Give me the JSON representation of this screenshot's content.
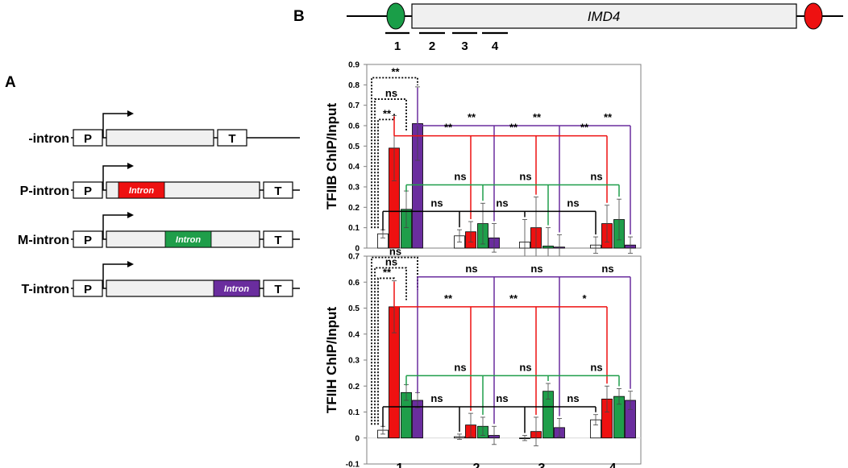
{
  "colors": {
    "none": "#ffffff",
    "p": "#ee1111",
    "m": "#1f9e4a",
    "t": "#6a2d9e",
    "box": "#f0f0f0",
    "axis": "#808080",
    "grid": "#d9d9d9"
  },
  "panelA": {
    "label": "A",
    "constructs": [
      {
        "name": "-intron",
        "promoter": "P",
        "terminator": "T",
        "intron": null
      },
      {
        "name": "P-intron",
        "promoter": "P",
        "terminator": "T",
        "intron": {
          "text": "Intron",
          "color": "p",
          "pos": "5'"
        }
      },
      {
        "name": "M-intron",
        "promoter": "P",
        "terminator": "T",
        "intron": {
          "text": "Intron",
          "color": "m",
          "pos": "middle"
        }
      },
      {
        "name": "T-intron",
        "promoter": "P",
        "terminator": "T",
        "intron": {
          "text": "Intron",
          "color": "t",
          "pos": "3'"
        }
      }
    ]
  },
  "panelB": {
    "label": "B",
    "gene": "IMD4",
    "regions": [
      "1",
      "2",
      "3",
      "4"
    ]
  },
  "chart_data": [
    {
      "type": "bar",
      "title": "",
      "ylabel": "TFIIB ChIP/Input",
      "xlabel": "",
      "categories": [
        "1",
        "2",
        "3",
        "4"
      ],
      "ylim": [
        0,
        0.9
      ],
      "ytick_step": 0.1,
      "ytick_labels": [
        "0",
        "0.1",
        "0.2",
        "0.3",
        "0.4",
        "0.5",
        "0.6",
        "0.7",
        "0.8",
        "0.9"
      ],
      "series": [
        {
          "name": "-intron",
          "color": "none",
          "values": [
            0.07,
            0.06,
            0.03,
            0.015
          ],
          "errors": [
            0.02,
            0.03,
            0.11,
            0.04
          ]
        },
        {
          "name": "P-intron",
          "color": "p",
          "values": [
            0.49,
            0.08,
            0.1,
            0.12
          ],
          "errors": [
            0.16,
            0.05,
            0.15,
            0.09
          ]
        },
        {
          "name": "M-intron",
          "color": "m",
          "values": [
            0.19,
            0.12,
            0.01,
            0.14
          ],
          "errors": [
            0.09,
            0.1,
            0.09,
            0.1
          ]
        },
        {
          "name": "T-intron",
          "color": "t",
          "values": [
            0.61,
            0.05,
            0.005,
            0.015
          ],
          "errors": [
            0.18,
            0.07,
            0.06,
            0.04
          ]
        }
      ],
      "brackets": [
        {
          "label": "**",
          "kind": "dotted",
          "from": "1:0",
          "to": "1:1",
          "level": 0.63
        },
        {
          "label": "ns",
          "kind": "dotted",
          "from": "1:0",
          "to": "1:2",
          "level": 0.73
        },
        {
          "label": "**",
          "kind": "dotted",
          "from": "1:0",
          "to": "1:3",
          "level": 0.835
        },
        {
          "label": "**",
          "kind": "solid",
          "color": "t",
          "from": "1:3",
          "to": [
            "2:3",
            "3:3",
            "4:3"
          ],
          "level": 0.6
        },
        {
          "label": "**",
          "kind": "solid",
          "color": "p",
          "from": "1:1",
          "to": [
            "2:1",
            "3:1",
            "4:1"
          ],
          "level": 0.55
        },
        {
          "label": "ns",
          "kind": "solid",
          "color": "m",
          "from": "1:2",
          "to": [
            "2:2",
            "3:2",
            "4:2"
          ],
          "level": 0.31
        },
        {
          "label": "ns",
          "kind": "solid",
          "color": "none",
          "from": "1:0",
          "to": [
            "2:0",
            "3:0",
            "4:0"
          ],
          "level": 0.18
        }
      ]
    },
    {
      "type": "bar",
      "title": "",
      "ylabel": "TFIIH ChIP/Input",
      "xlabel": "",
      "categories": [
        "1",
        "2",
        "3",
        "4"
      ],
      "ylim": [
        -0.1,
        0.7
      ],
      "ytick_step": 0.1,
      "ytick_labels": [
        "-0.1",
        "0",
        "0.1",
        "0.2",
        "0.3",
        "0.4",
        "0.5",
        "0.6",
        "0.7"
      ],
      "series": [
        {
          "name": "-intron",
          "color": "none",
          "values": [
            0.03,
            0.005,
            0.0,
            0.07
          ],
          "errors": [
            0.015,
            0.01,
            0.01,
            0.02
          ]
        },
        {
          "name": "P-intron",
          "color": "p",
          "values": [
            0.505,
            0.05,
            0.025,
            0.15
          ],
          "errors": [
            0.1,
            0.045,
            0.055,
            0.05
          ]
        },
        {
          "name": "M-intron",
          "color": "m",
          "values": [
            0.175,
            0.045,
            0.18,
            0.16
          ],
          "errors": [
            0.03,
            0.035,
            0.03,
            0.03
          ]
        },
        {
          "name": "T-intron",
          "color": "t",
          "values": [
            0.145,
            0.01,
            0.04,
            0.145
          ],
          "errors": [
            0.03,
            0.035,
            0.035,
            0.035
          ]
        }
      ],
      "brackets": [
        {
          "label": "**",
          "kind": "dotted",
          "from": "1:0",
          "to": "1:1",
          "level": 0.615
        },
        {
          "label": "ns",
          "kind": "dotted",
          "from": "1:0",
          "to": "1:2",
          "level": 0.655
        },
        {
          "label": "ns",
          "kind": "dotted",
          "from": "1:0",
          "to": "1:3",
          "level": 0.695
        },
        {
          "label": "ns",
          "kind": "solid",
          "color": "t",
          "from": "1:3",
          "to": [
            "2:3",
            "3:3",
            "4:3"
          ],
          "level": 0.62
        },
        {
          "label": "**",
          "kind": "solid",
          "color": "p",
          "from": "1:1",
          "to": [
            "2:1",
            "3:1"
          ],
          "level": 0.505
        },
        {
          "label": "*",
          "kind": "solid",
          "color": "p",
          "from": "3:1",
          "to": [
            "4:1"
          ],
          "level": 0.505
        },
        {
          "label": "ns",
          "kind": "solid",
          "color": "m",
          "from": "1:2",
          "to": [
            "2:2",
            "3:2",
            "4:2"
          ],
          "level": 0.24
        },
        {
          "label": "ns",
          "kind": "solid",
          "color": "none",
          "from": "1:0",
          "to": [
            "2:0",
            "3:0",
            "4:0"
          ],
          "level": 0.12
        }
      ]
    }
  ]
}
